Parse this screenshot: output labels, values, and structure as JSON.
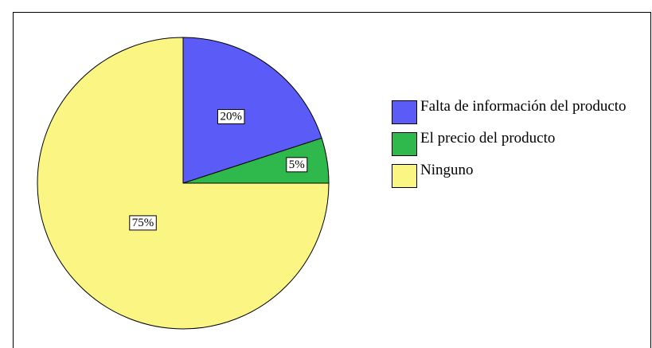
{
  "chart_data": {
    "type": "pie",
    "categories": [
      "Falta de información del producto",
      "El precio del producto",
      "Ninguno"
    ],
    "values": [
      20,
      5,
      75
    ],
    "value_labels": [
      "20%",
      "5%",
      "75%"
    ],
    "colors": [
      "#5b5bf7",
      "#2fb84c",
      "#fbf584"
    ],
    "legend": "right"
  }
}
